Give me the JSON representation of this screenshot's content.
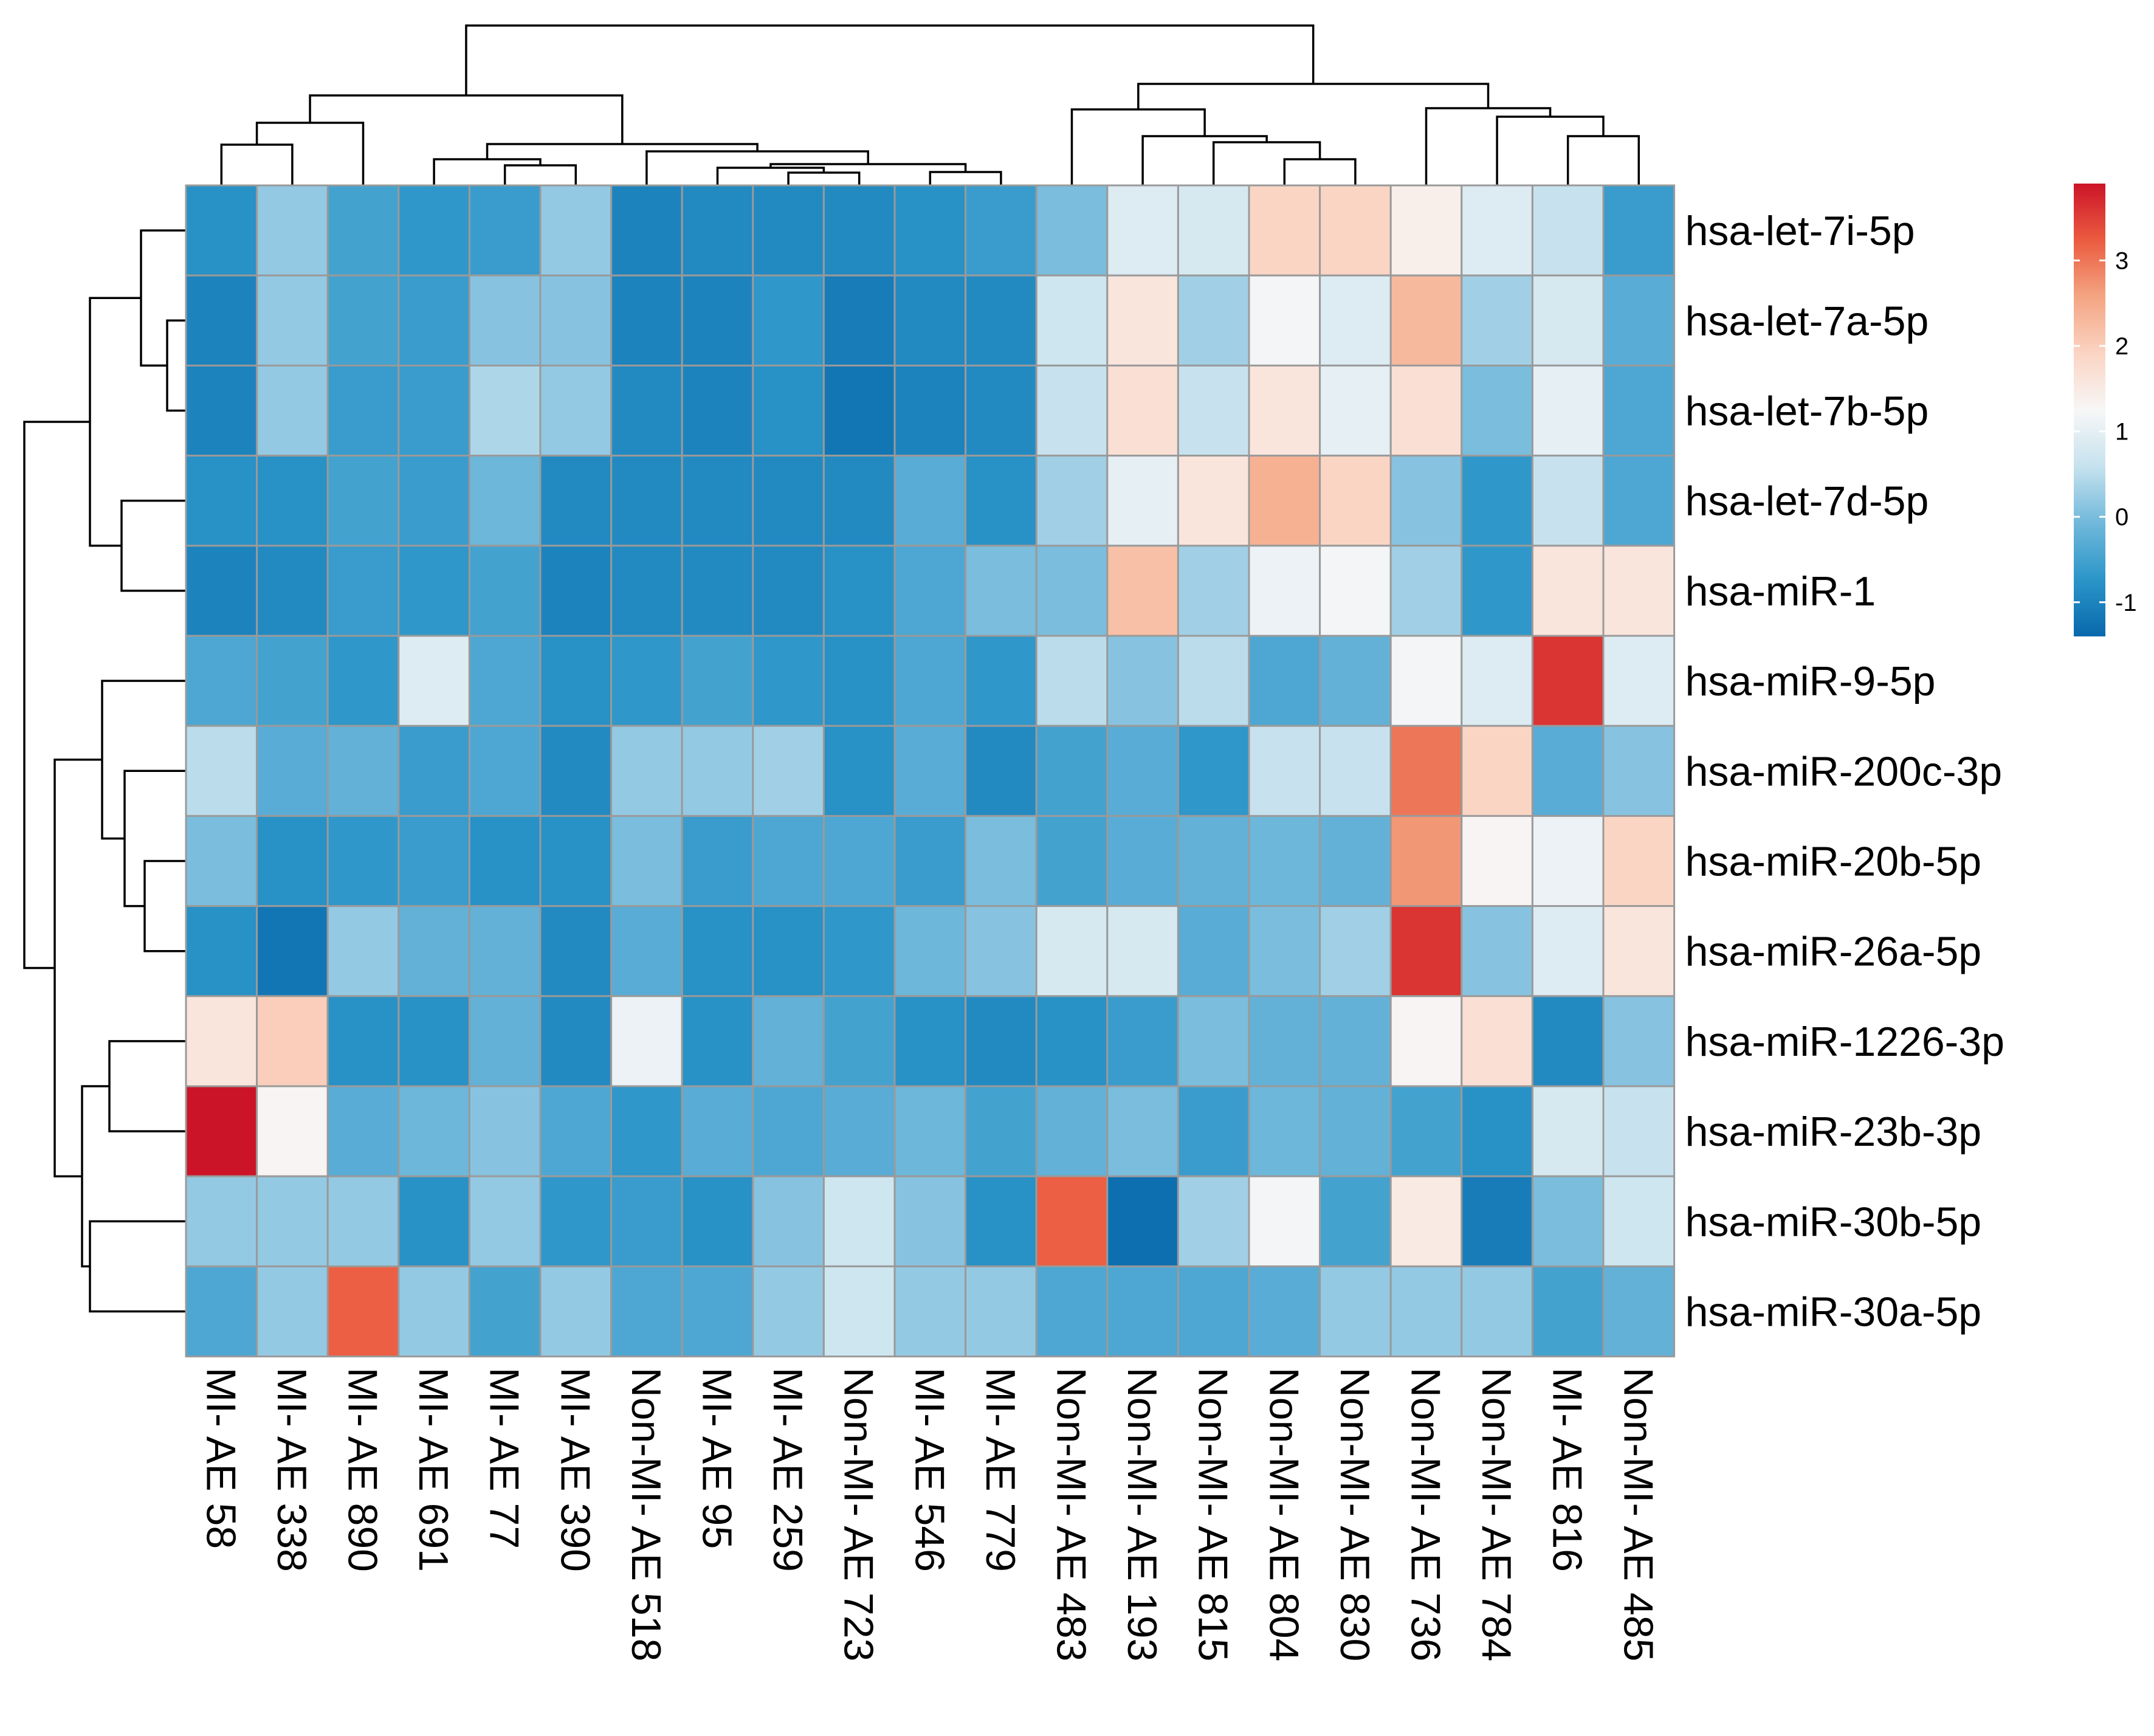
{
  "chart_data": {
    "type": "heatmap",
    "title": "",
    "rows": [
      "hsa-let-7i-5p",
      "hsa-let-7a-5p",
      "hsa-let-7b-5p",
      "hsa-let-7d-5p",
      "hsa-miR-1",
      "hsa-miR-9-5p",
      "hsa-miR-200c-3p",
      "hsa-miR-20b-5p",
      "hsa-miR-26a-5p",
      "hsa-miR-1226-3p",
      "hsa-miR-23b-3p",
      "hsa-miR-30b-5p",
      "hsa-miR-30a-5p"
    ],
    "columns": [
      "MI- AE 58",
      "MI- AE 338",
      "MI- AE 890",
      "MI- AE 691",
      "MI- AE 77",
      "MI- AE 390",
      "Non-MI- AE 518",
      "MI- AE 95",
      "MI- AE 259",
      "Non-MI- AE 723",
      "MI- AE 546",
      "MI- AE 779",
      "Non-MI- AE 483",
      "Non-MI- AE 193",
      "Non-MI- AE 815",
      "Non-MI- AE 804",
      "Non-MI- AE 830",
      "Non-MI- AE 736",
      "Non-MI- AE 784",
      "MI- AE 816",
      "Non-MI- AE 485"
    ],
    "values": [
      [
        -0.8,
        0.2,
        -0.5,
        -0.7,
        -0.6,
        0.2,
        -1.0,
        -0.9,
        -0.9,
        -0.9,
        -0.8,
        -0.6,
        0.0,
        0.9,
        0.8,
        1.9,
        1.9,
        1.4,
        0.9,
        0.6,
        -0.6
      ],
      [
        -1.0,
        0.2,
        -0.5,
        -0.6,
        0.1,
        0.1,
        -1.0,
        -1.0,
        -0.7,
        -1.1,
        -0.9,
        -0.9,
        0.7,
        1.6,
        0.3,
        1.2,
        0.9,
        2.3,
        0.3,
        0.8,
        -0.3
      ],
      [
        -1.0,
        0.2,
        -0.6,
        -0.6,
        0.4,
        0.2,
        -0.9,
        -1.0,
        -0.8,
        -1.2,
        -1.0,
        -0.9,
        0.6,
        1.7,
        0.6,
        1.6,
        1.0,
        1.7,
        0.0,
        1.0,
        -0.4
      ],
      [
        -0.8,
        -0.8,
        -0.5,
        -0.6,
        -0.1,
        -0.9,
        -0.9,
        -0.9,
        -0.9,
        -0.9,
        -0.3,
        -0.8,
        0.3,
        1.0,
        1.6,
        2.4,
        1.9,
        0.1,
        -0.7,
        0.6,
        -0.4
      ],
      [
        -1.0,
        -0.9,
        -0.6,
        -0.7,
        -0.5,
        -1.0,
        -0.9,
        -0.9,
        -0.9,
        -0.8,
        -0.4,
        0.0,
        0.0,
        2.2,
        0.3,
        1.1,
        1.2,
        0.3,
        -0.7,
        1.6,
        1.6
      ],
      [
        -0.4,
        -0.5,
        -0.7,
        0.9,
        -0.4,
        -0.8,
        -0.7,
        -0.5,
        -0.7,
        -0.8,
        -0.4,
        -0.7,
        0.5,
        0.1,
        0.5,
        -0.4,
        -0.2,
        1.2,
        0.9,
        3.6,
        0.9
      ],
      [
        0.5,
        -0.3,
        -0.2,
        -0.6,
        -0.4,
        -0.9,
        0.2,
        0.2,
        0.3,
        -0.8,
        -0.3,
        -0.9,
        -0.5,
        -0.3,
        -0.7,
        0.6,
        0.6,
        3.0,
        1.9,
        -0.3,
        0.1
      ],
      [
        0.0,
        -0.8,
        -0.7,
        -0.6,
        -0.8,
        -0.8,
        0.0,
        -0.6,
        -0.4,
        -0.4,
        -0.6,
        0.0,
        -0.5,
        -0.3,
        -0.2,
        -0.1,
        -0.2,
        2.7,
        1.3,
        1.1,
        1.9
      ],
      [
        -0.8,
        -1.2,
        0.2,
        -0.2,
        -0.2,
        -0.9,
        -0.3,
        -0.8,
        -0.8,
        -0.7,
        -0.1,
        0.1,
        0.8,
        0.8,
        -0.3,
        0.0,
        0.3,
        3.6,
        0.1,
        0.9,
        1.6
      ],
      [
        1.6,
        2.0,
        -0.8,
        -0.8,
        -0.2,
        -0.9,
        1.1,
        -0.8,
        -0.2,
        -0.5,
        -0.8,
        -0.9,
        -0.8,
        -0.6,
        0.0,
        -0.2,
        -0.2,
        1.3,
        1.7,
        -0.9,
        0.1
      ],
      [
        3.9,
        1.3,
        -0.3,
        -0.1,
        0.1,
        -0.4,
        -0.7,
        -0.3,
        -0.4,
        -0.3,
        -0.1,
        -0.5,
        -0.2,
        0.0,
        -0.6,
        -0.1,
        -0.2,
        -0.5,
        -0.8,
        0.8,
        0.6
      ],
      [
        0.2,
        0.2,
        0.2,
        -0.8,
        0.2,
        -0.7,
        -0.6,
        -0.8,
        0.1,
        0.7,
        0.1,
        -0.8,
        3.2,
        -1.3,
        0.3,
        1.2,
        -0.5,
        1.5,
        -1.1,
        0.0,
        0.7
      ],
      [
        -0.4,
        0.2,
        3.2,
        0.2,
        -0.5,
        0.2,
        -0.4,
        -0.4,
        0.2,
        0.7,
        0.2,
        0.2,
        -0.4,
        -0.4,
        -0.4,
        -0.3,
        0.2,
        0.2,
        0.2,
        -0.5,
        -0.2
      ]
    ],
    "color_scale": {
      "min": -1.4,
      "max": 3.9,
      "ticks": [
        -1,
        0,
        1,
        2,
        3
      ],
      "tick_labels": [
        "-1",
        "0",
        "1",
        "2",
        "3"
      ],
      "colors": [
        "#0868ac",
        "#2b95c8",
        "#70b8db",
        "#c6e2ee",
        "#f7f7f7",
        "#fbd4c3",
        "#f4a582",
        "#eb5b40",
        "#cc1428"
      ]
    },
    "row_dendrogram": true,
    "column_dendrogram": true,
    "legend_position": "top-right"
  }
}
